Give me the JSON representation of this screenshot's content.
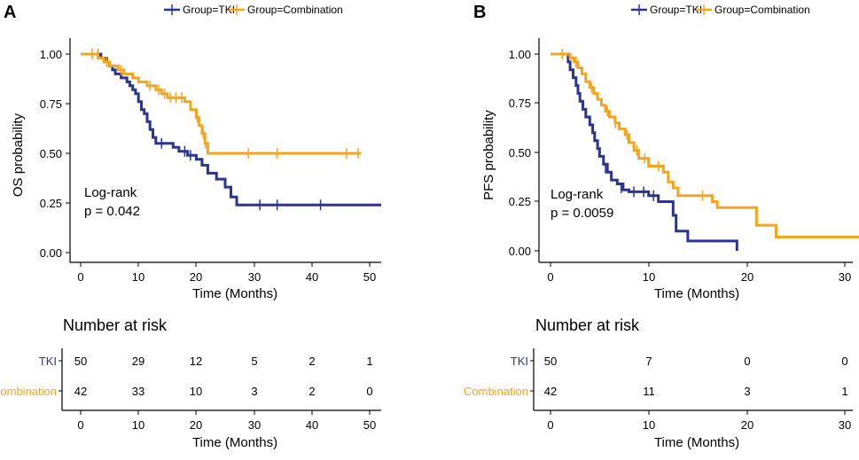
{
  "colors": {
    "tki": "#2b3590",
    "combination": "#f5a51d",
    "axis": "#000000"
  },
  "chart_data": [
    {
      "type": "line",
      "subtype": "kaplan-meier",
      "panel_label": "A",
      "legend": {
        "tki_label": "Group=TKI",
        "combination_label": "Group=Combination"
      },
      "xlabel": "Time (Months)",
      "ylabel": "OS probability",
      "xlim": [
        -2,
        52
      ],
      "ylim": [
        -0.02,
        1.0
      ],
      "xticks": [
        0,
        10,
        20,
        30,
        40,
        50
      ],
      "yticks": [
        "0.00",
        "0.25",
        "0.50",
        "0.75",
        "1.00"
      ],
      "annotation_line1": "Log-rank",
      "annotation_line2": "p = 0.042",
      "series": [
        {
          "name": "TKI",
          "steps": [
            [
              0,
              1.0
            ],
            [
              2.5,
              1.0
            ],
            [
              3.5,
              0.98
            ],
            [
              4.5,
              0.96
            ],
            [
              5.0,
              0.94
            ],
            [
              5.5,
              0.92
            ],
            [
              6.0,
              0.9
            ],
            [
              7.0,
              0.88
            ],
            [
              8.0,
              0.86
            ],
            [
              8.5,
              0.84
            ],
            [
              9.0,
              0.82
            ],
            [
              9.5,
              0.8
            ],
            [
              10.0,
              0.76
            ],
            [
              10.5,
              0.72
            ],
            [
              11.0,
              0.7
            ],
            [
              11.5,
              0.66
            ],
            [
              12.0,
              0.62
            ],
            [
              12.5,
              0.58
            ],
            [
              13.0,
              0.55
            ],
            [
              16.0,
              0.53
            ],
            [
              17.0,
              0.51
            ],
            [
              18.5,
              0.49
            ],
            [
              20.0,
              0.47
            ],
            [
              21.0,
              0.44
            ],
            [
              22.0,
              0.4
            ],
            [
              23.5,
              0.37
            ],
            [
              25.0,
              0.33
            ],
            [
              26.0,
              0.28
            ],
            [
              27.0,
              0.24
            ],
            [
              52,
              0.24
            ]
          ],
          "censors": [
            [
              3,
              1.0
            ],
            [
              14,
              0.55
            ],
            [
              18,
              0.51
            ],
            [
              19,
              0.49
            ],
            [
              31,
              0.24
            ],
            [
              34,
              0.24
            ],
            [
              41.5,
              0.24
            ]
          ]
        },
        {
          "name": "Combination",
          "steps": [
            [
              0,
              1.0
            ],
            [
              2.5,
              1.0
            ],
            [
              3.0,
              0.98
            ],
            [
              4.0,
              0.96
            ],
            [
              5.0,
              0.94
            ],
            [
              6.5,
              0.92
            ],
            [
              7.5,
              0.9
            ],
            [
              9.0,
              0.88
            ],
            [
              10.0,
              0.86
            ],
            [
              11.5,
              0.84
            ],
            [
              13.0,
              0.82
            ],
            [
              14.0,
              0.8
            ],
            [
              15.0,
              0.78
            ],
            [
              18.0,
              0.76
            ],
            [
              19.0,
              0.72
            ],
            [
              20.0,
              0.68
            ],
            [
              20.5,
              0.64
            ],
            [
              21.0,
              0.6
            ],
            [
              21.5,
              0.55
            ],
            [
              22.0,
              0.5
            ],
            [
              48.5,
              0.5
            ]
          ],
          "censors": [
            [
              2,
              1.0
            ],
            [
              3,
              1.0
            ],
            [
              4.5,
              0.96
            ],
            [
              7,
              0.92
            ],
            [
              12,
              0.84
            ],
            [
              13.5,
              0.82
            ],
            [
              14.5,
              0.8
            ],
            [
              15.5,
              0.78
            ],
            [
              16.5,
              0.78
            ],
            [
              17.5,
              0.78
            ],
            [
              20.2,
              0.68
            ],
            [
              21.2,
              0.6
            ],
            [
              21.6,
              0.55
            ],
            [
              29,
              0.5
            ],
            [
              34,
              0.5
            ],
            [
              46,
              0.5
            ],
            [
              48,
              0.5
            ]
          ]
        }
      ],
      "risk_table": {
        "title": "Number at risk",
        "xlabel": "Time (Months)",
        "times": [
          0,
          10,
          20,
          30,
          40,
          50
        ],
        "rows": [
          {
            "label": "TKI",
            "values": [
              "50",
              "29",
              "12",
              "5",
              "2",
              "1"
            ]
          },
          {
            "label": "Combination",
            "values": [
              "42",
              "33",
              "10",
              "3",
              "2",
              "0"
            ]
          }
        ]
      }
    },
    {
      "type": "line",
      "subtype": "kaplan-meier",
      "panel_label": "B",
      "legend": {
        "tki_label": "Group=TKI",
        "combination_label": "Group=Combination"
      },
      "xlabel": "Time (Months)",
      "ylabel": "PFS probability",
      "xlim": [
        -1.5,
        31.5
      ],
      "ylim": [
        -0.04,
        1.0
      ],
      "xticks": [
        0,
        10,
        20,
        30
      ],
      "yticks": [
        "0.00",
        "0.25",
        "0.50",
        "0.75",
        "1.00"
      ],
      "annotation_line1": "Log-rank",
      "annotation_line2": "p = 0.0059",
      "series": [
        {
          "name": "TKI",
          "steps": [
            [
              0,
              1.0
            ],
            [
              1.5,
              1.0
            ],
            [
              1.8,
              0.96
            ],
            [
              2.0,
              0.92
            ],
            [
              2.3,
              0.88
            ],
            [
              2.6,
              0.84
            ],
            [
              2.8,
              0.8
            ],
            [
              3.0,
              0.76
            ],
            [
              3.3,
              0.72
            ],
            [
              3.6,
              0.68
            ],
            [
              4.0,
              0.64
            ],
            [
              4.3,
              0.6
            ],
            [
              4.5,
              0.56
            ],
            [
              4.8,
              0.52
            ],
            [
              5.0,
              0.48
            ],
            [
              5.4,
              0.44
            ],
            [
              5.8,
              0.4
            ],
            [
              6.2,
              0.36
            ],
            [
              6.8,
              0.34
            ],
            [
              7.4,
              0.31
            ],
            [
              8.0,
              0.3
            ],
            [
              10.0,
              0.28
            ],
            [
              11.0,
              0.25
            ],
            [
              12.5,
              0.18
            ],
            [
              12.8,
              0.1
            ],
            [
              14.0,
              0.05
            ],
            [
              19.0,
              0.05
            ],
            [
              19.0,
              0.0
            ]
          ],
          "censors": [
            [
              5.6,
              0.42
            ],
            [
              7.2,
              0.32
            ],
            [
              8.5,
              0.3
            ],
            [
              9.5,
              0.3
            ],
            [
              10.5,
              0.28
            ]
          ]
        },
        {
          "name": "Combination",
          "steps": [
            [
              0,
              1.0
            ],
            [
              1.5,
              1.0
            ],
            [
              2.0,
              0.98
            ],
            [
              2.4,
              0.96
            ],
            [
              2.8,
              0.93
            ],
            [
              3.2,
              0.9
            ],
            [
              3.6,
              0.86
            ],
            [
              4.0,
              0.83
            ],
            [
              4.4,
              0.8
            ],
            [
              4.8,
              0.77
            ],
            [
              5.2,
              0.74
            ],
            [
              5.6,
              0.71
            ],
            [
              6.0,
              0.68
            ],
            [
              6.6,
              0.65
            ],
            [
              7.0,
              0.62
            ],
            [
              7.6,
              0.59
            ],
            [
              8.0,
              0.55
            ],
            [
              8.5,
              0.51
            ],
            [
              9.0,
              0.47
            ],
            [
              10.0,
              0.43
            ],
            [
              11.5,
              0.4
            ],
            [
              12.0,
              0.35
            ],
            [
              12.5,
              0.32
            ],
            [
              13.0,
              0.28
            ],
            [
              16.5,
              0.25
            ],
            [
              17.0,
              0.22
            ],
            [
              21.0,
              0.13
            ],
            [
              23.0,
              0.07
            ],
            [
              31.5,
              0.07
            ]
          ],
          "censors": [
            [
              1.2,
              1.0
            ],
            [
              2.6,
              0.96
            ],
            [
              4.2,
              0.83
            ],
            [
              5.8,
              0.71
            ],
            [
              6.6,
              0.65
            ],
            [
              7.8,
              0.59
            ],
            [
              8.8,
              0.51
            ],
            [
              9.6,
              0.47
            ],
            [
              11.0,
              0.43
            ],
            [
              15.5,
              0.28
            ]
          ]
        }
      ],
      "risk_table": {
        "title": "Number at risk",
        "xlabel": "Time (Months)",
        "times": [
          0,
          10,
          20,
          30
        ],
        "rows": [
          {
            "label": "TKI",
            "values": [
              "50",
              "7",
              "0",
              "0"
            ]
          },
          {
            "label": "Combination",
            "values": [
              "42",
              "11",
              "3",
              "1"
            ]
          }
        ]
      }
    }
  ]
}
